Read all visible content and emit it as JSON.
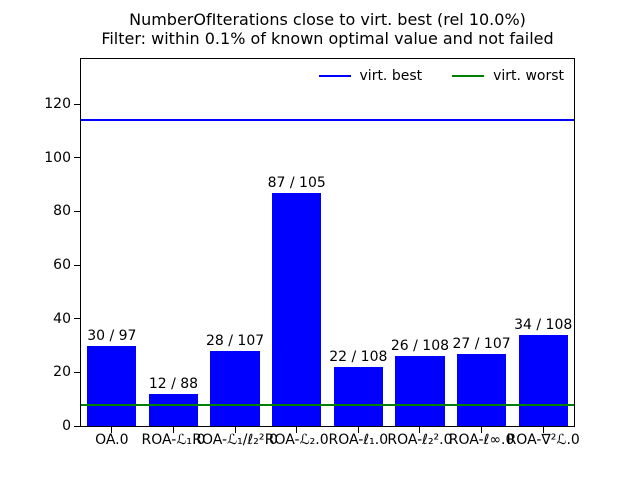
{
  "figure": {
    "title_line1": "NumberOfIterations close to virt. best (rel 10.0%)",
    "title_line2": "Filter: within 0.1% of known optimal value and not failed"
  },
  "chart_data": {
    "type": "bar",
    "title": "NumberOfIterations close to virt. best (rel 10.0%)",
    "subtitle": "Filter: within 0.1% of known optimal value and not failed",
    "categories": [
      "OA.0",
      "ROA-ℒ₁.0",
      "ROA-ℒ₁/ℓ₂².0",
      "ROA-ℒ₂.0",
      "ROA-ℓ₁.0",
      "ROA-ℓ₂².0",
      "ROA-ℓ∞.0",
      "ROA-∇²ℒ.0"
    ],
    "values": [
      30,
      12,
      28,
      87,
      22,
      26,
      27,
      34
    ],
    "bar_labels": [
      "30 / 97",
      "12 / 88",
      "28 / 107",
      "87 / 105",
      "22 / 108",
      "26 / 108",
      "27 / 107",
      "34 / 108"
    ],
    "bar_color": "#0000ff",
    "xlabel": "",
    "ylabel": "",
    "yticks": [
      0,
      20,
      40,
      60,
      80,
      100,
      120
    ],
    "ylim": [
      0,
      136.8
    ],
    "grid": false,
    "legend_position": "upper right",
    "legend": [
      {
        "label": "virt. best",
        "color": "#0000ff"
      },
      {
        "label": "virt. worst",
        "color": "#008000"
      }
    ],
    "reference_lines": [
      {
        "name": "virt. best",
        "value": 114,
        "color": "#0000ff"
      },
      {
        "name": "virt. worst",
        "value": 8,
        "color": "#008000"
      }
    ]
  }
}
